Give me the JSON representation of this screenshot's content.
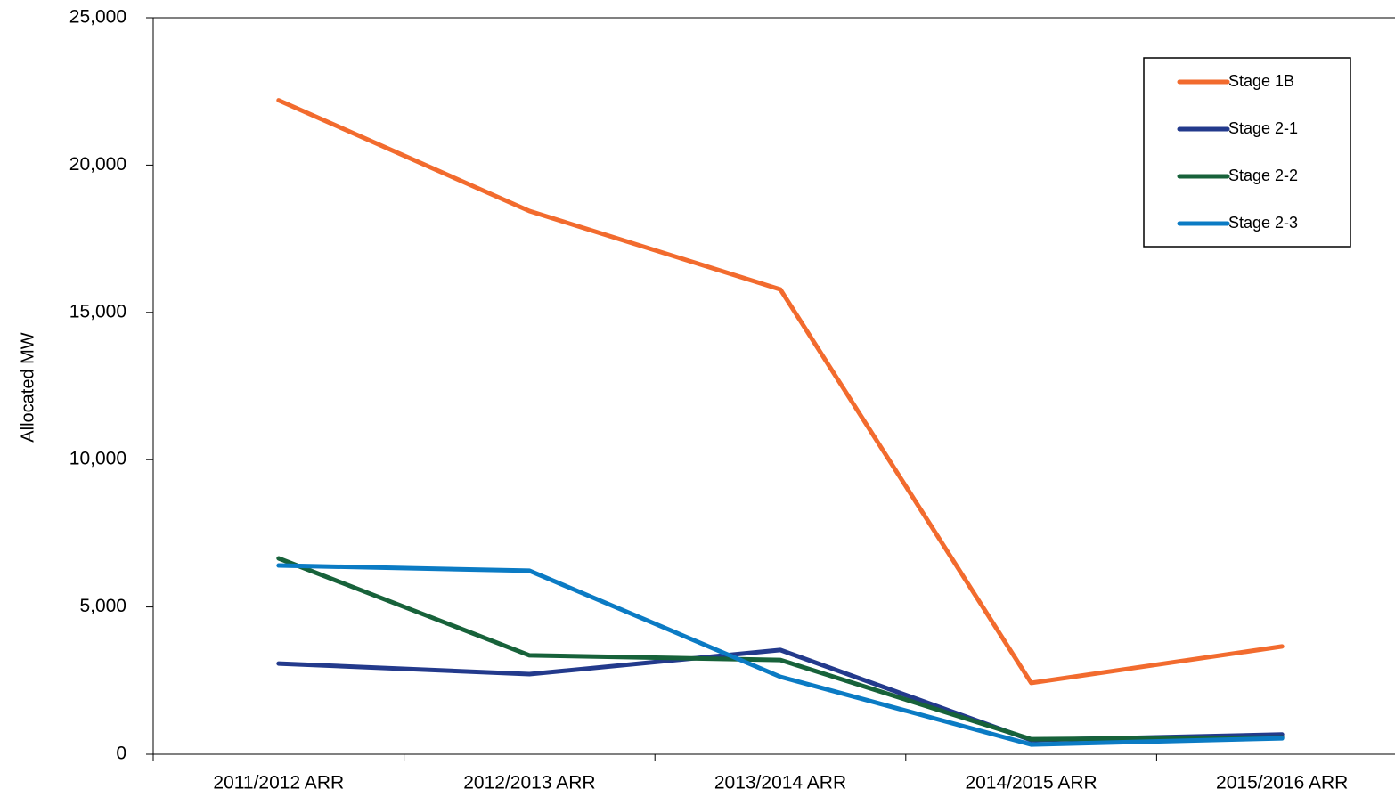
{
  "chart_data": {
    "type": "line",
    "y_label": "Allocated MW",
    "categories": [
      "2011/2012 ARR",
      "2012/2013 ARR",
      "2013/2014 ARR",
      "2014/2015 ARR",
      "2015/2016 ARR"
    ],
    "series": [
      {
        "name": "Stage 1B",
        "color": "#f26b2e",
        "values": [
          22200,
          18440,
          15780,
          2420,
          3660
        ]
      },
      {
        "name": "Stage 2-1",
        "color": "#233a8c",
        "values": [
          3080,
          2720,
          3540,
          480,
          670
        ]
      },
      {
        "name": "Stage 2-2",
        "color": "#17623a",
        "values": [
          6650,
          3360,
          3200,
          510,
          570
        ]
      },
      {
        "name": "Stage 2-3",
        "color": "#0b7bc4",
        "values": [
          6410,
          6230,
          2630,
          330,
          540
        ]
      }
    ],
    "ylim": [
      0,
      25000
    ],
    "yticks": [
      0,
      {
        "value": 5000,
        "label": "5,000"
      },
      {
        "value": 10000,
        "label": "10,000"
      },
      {
        "value": 15000,
        "label": "15,000"
      },
      {
        "value": 20000,
        "label": "20,000"
      },
      {
        "value": 25000,
        "label": "25,000"
      }
    ],
    "legend": "upper right"
  }
}
